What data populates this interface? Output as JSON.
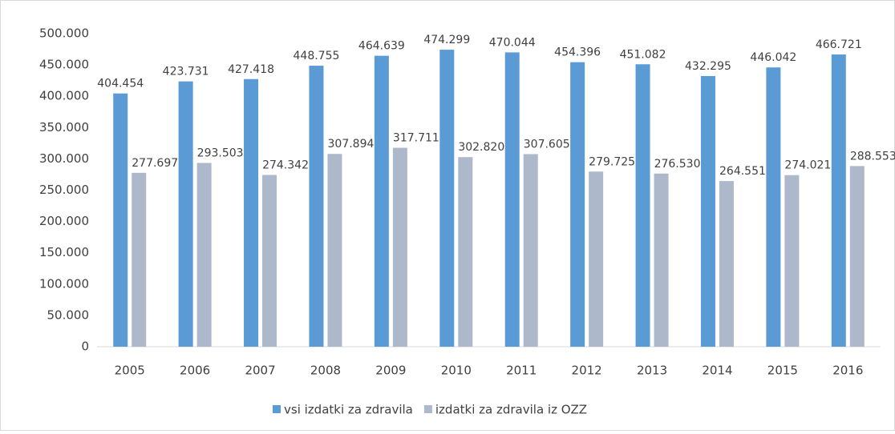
{
  "chart_data": {
    "type": "bar",
    "categories": [
      "2005",
      "2006",
      "2007",
      "2008",
      "2009",
      "2010",
      "2011",
      "2012",
      "2013",
      "2014",
      "2015",
      "2016"
    ],
    "series": [
      {
        "name": "vsi izdatki za zdravila",
        "color": "#5b9bd5",
        "values": [
          404454,
          423731,
          427418,
          448755,
          464639,
          474299,
          470044,
          454396,
          451082,
          432295,
          446042,
          466721
        ],
        "value_labels": [
          "404.454",
          "423.731",
          "427.418",
          "448.755",
          "464.639",
          "474.299",
          "470.044",
          "454.396",
          "451.082",
          "432.295",
          "446.042",
          "466.721"
        ]
      },
      {
        "name": "izdatki za zdravila iz OZZ",
        "color": "#adb9ca",
        "values": [
          277697,
          293503,
          274342,
          307894,
          317711,
          302820,
          307605,
          279725,
          276530,
          264551,
          274021,
          288553
        ],
        "value_labels": [
          "277.697",
          "293.503",
          "274.342",
          "307.894",
          "317.711",
          "302.820",
          "307.605",
          "279.725",
          "276.530",
          "264.551",
          "274.021",
          "288.553"
        ]
      }
    ],
    "ylim": [
      0,
      500000
    ],
    "yticks": [
      0,
      {
        "value": 50000,
        "label": "50.000"
      },
      {
        "value": 100000,
        "label": "100.000"
      },
      {
        "value": 150000,
        "label": "150.000"
      },
      {
        "value": 200000,
        "label": "200.000"
      },
      {
        "value": 250000,
        "label": "250.000"
      },
      {
        "value": 300000,
        "label": "300.000"
      },
      {
        "value": 350000,
        "label": "350.000"
      },
      {
        "value": 400000,
        "label": "400.000"
      },
      {
        "value": 450000,
        "label": "450.000"
      },
      {
        "value": 500000,
        "label": "500.000"
      }
    ],
    "grid": false,
    "legend": "bottom"
  }
}
